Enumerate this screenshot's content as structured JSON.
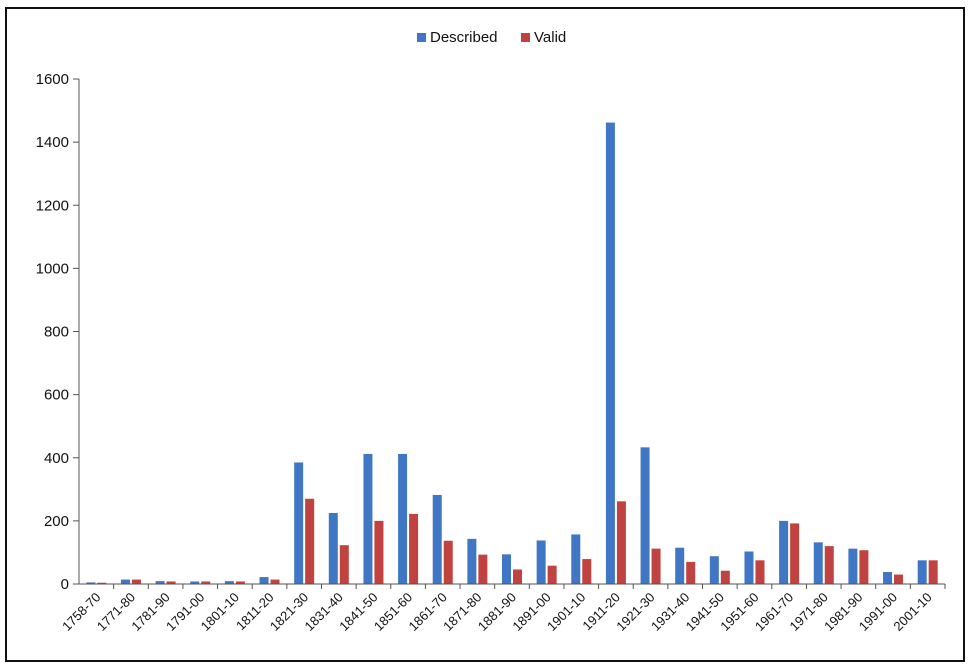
{
  "chart_data": {
    "type": "bar",
    "title": "",
    "xlabel": "",
    "ylabel": "",
    "ylim": [
      0,
      1600
    ],
    "yticks": [
      0,
      200,
      400,
      600,
      800,
      1000,
      1200,
      1400,
      1600
    ],
    "grid": false,
    "legend_position": "top-center",
    "categories": [
      "1758-70",
      "1771-80",
      "1781-90",
      "1791-00",
      "1801-10",
      "1811-20",
      "1821-30",
      "1831-40",
      "1841-50",
      "1851-60",
      "1861-70",
      "1871-80",
      "1881-90",
      "1891-00",
      "1901-10",
      "1911-20",
      "1921-30",
      "1931-40",
      "1941-50",
      "1951-60",
      "1961-70",
      "1971-80",
      "1981-90",
      "1991-00",
      "2001-10"
    ],
    "series": [
      {
        "name": "Described",
        "color": "#3f77c4",
        "values": [
          5,
          14,
          9,
          8,
          9,
          22,
          385,
          225,
          412,
          412,
          282,
          143,
          94,
          138,
          157,
          1462,
          433,
          115,
          88,
          103,
          200,
          132,
          112,
          38,
          75
        ]
      },
      {
        "name": "Valid",
        "color": "#c0433f",
        "values": [
          4,
          14,
          8,
          8,
          8,
          14,
          270,
          123,
          200,
          222,
          137,
          93,
          46,
          58,
          79,
          262,
          112,
          70,
          42,
          75,
          192,
          120,
          107,
          30,
          75
        ]
      }
    ]
  }
}
